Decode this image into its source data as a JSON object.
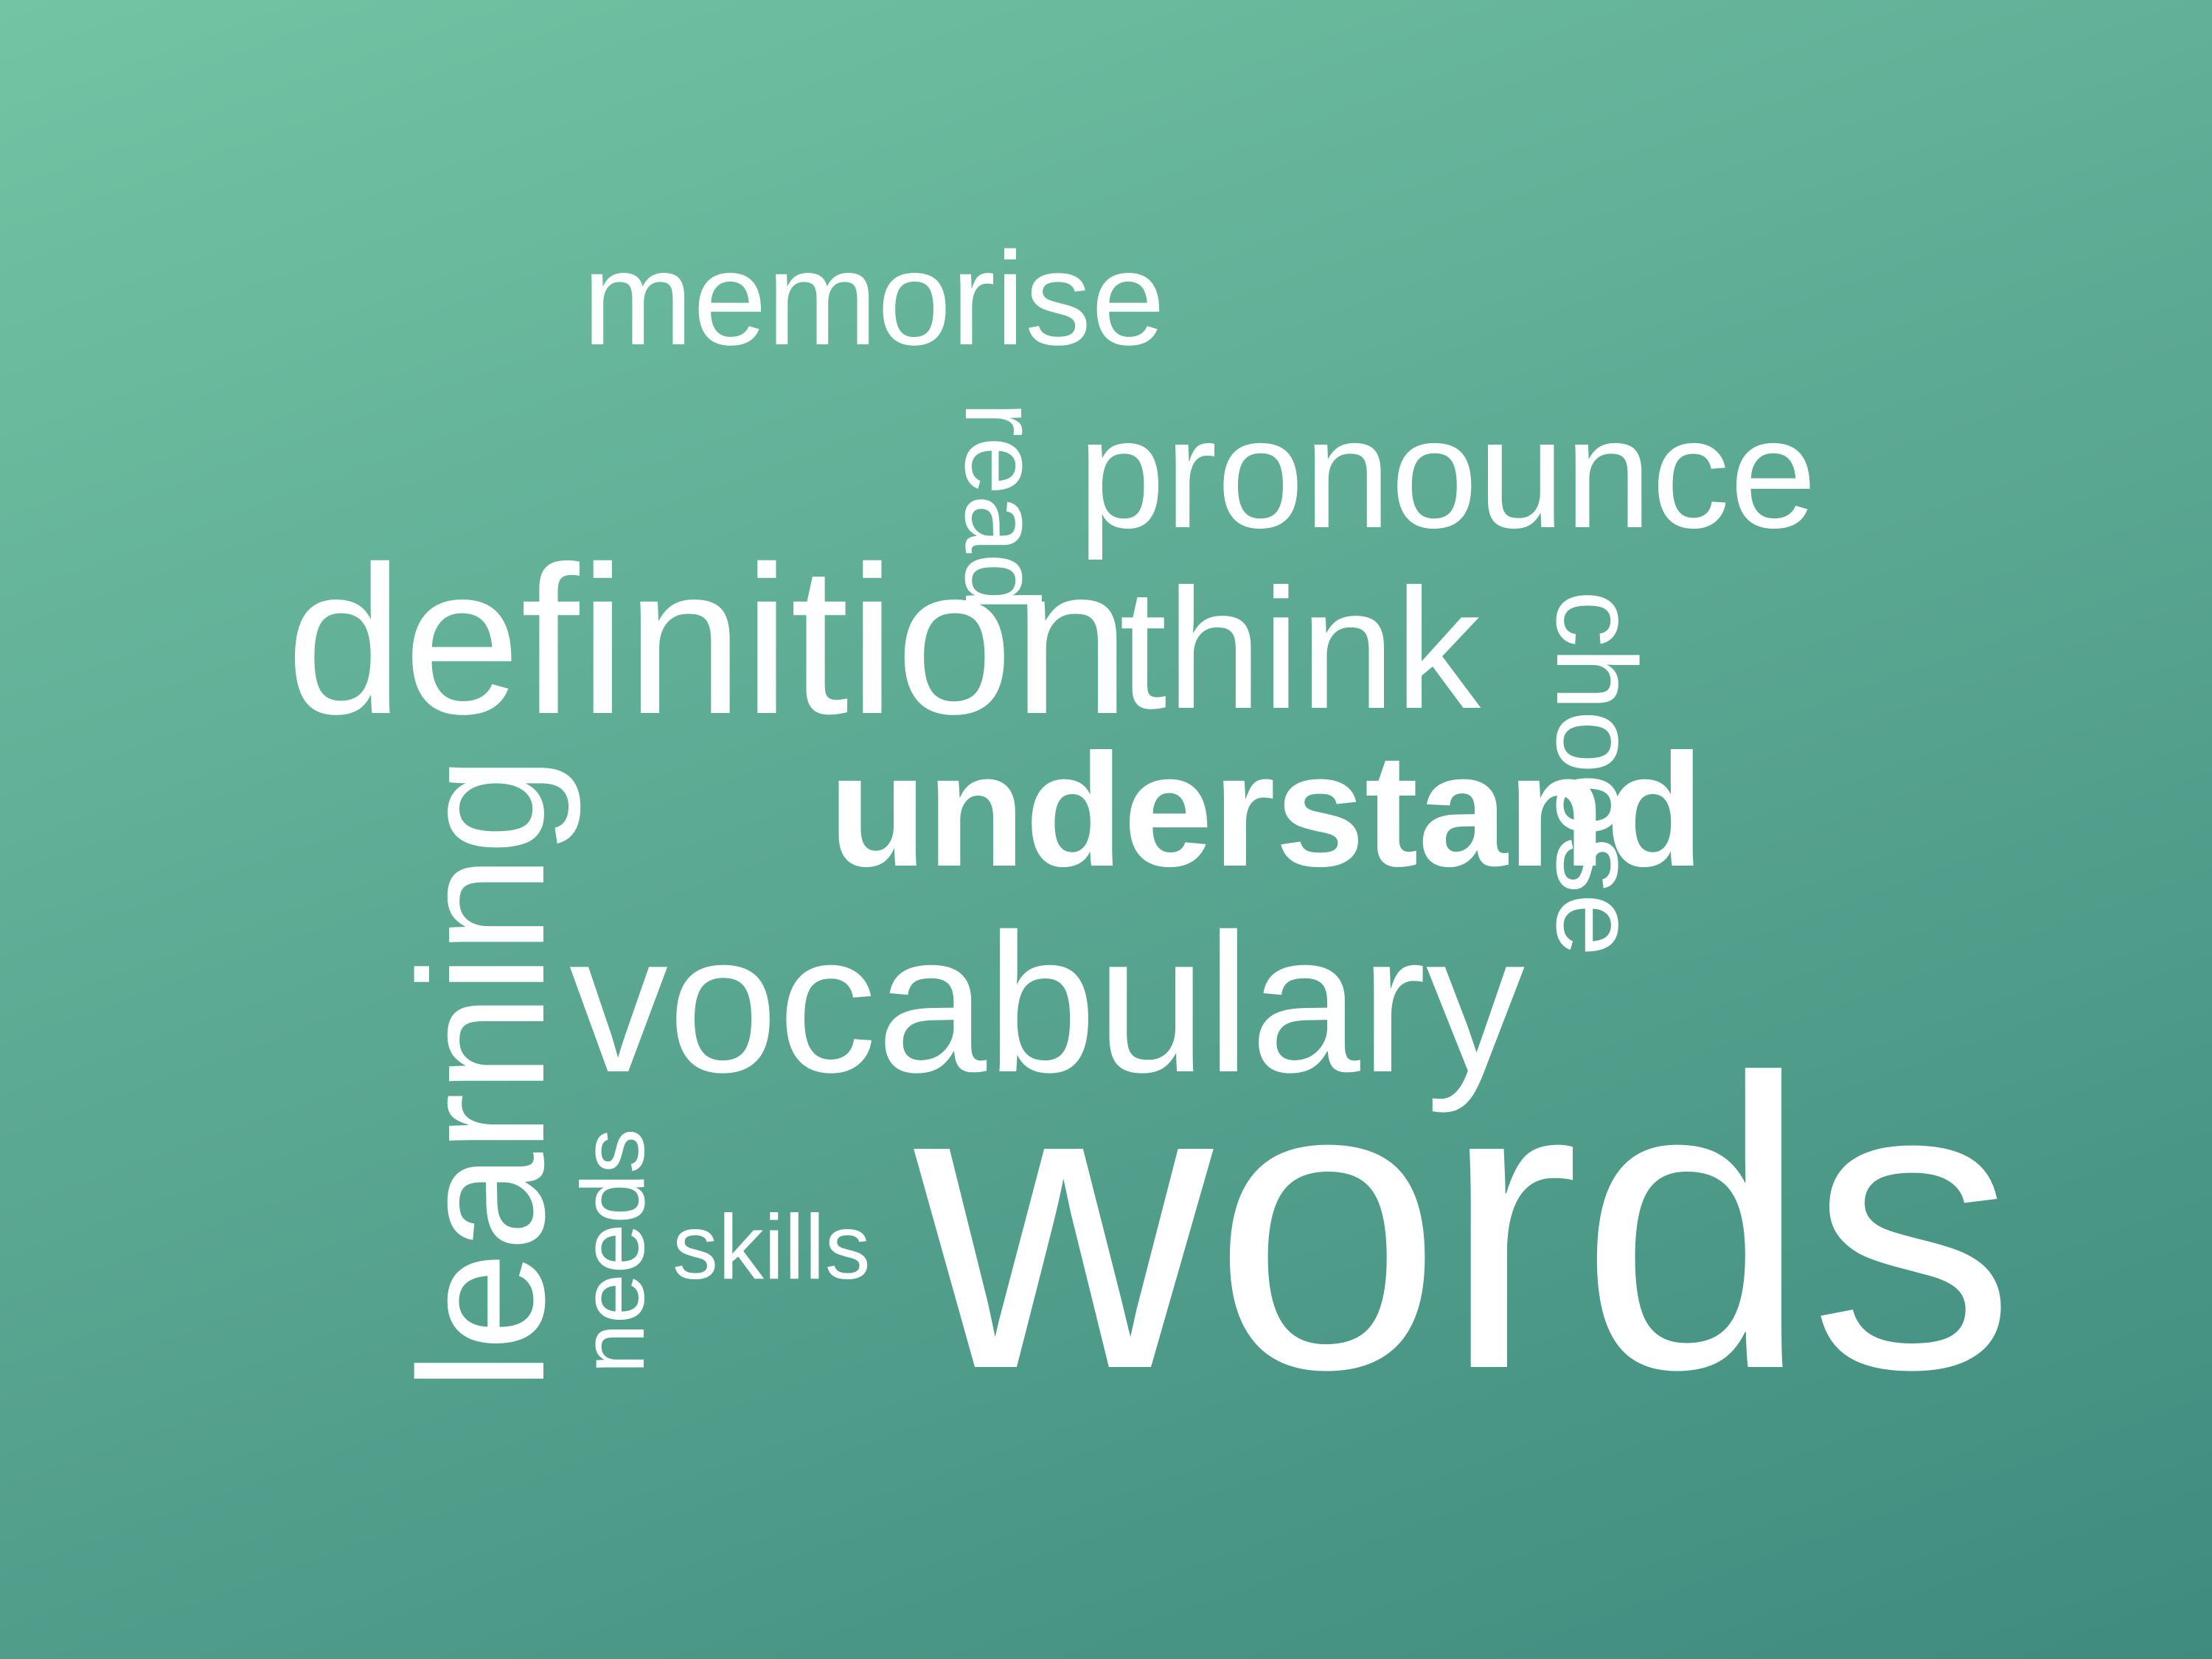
{
  "colors": {
    "text": "#ffffff",
    "background_light": "#72c4a4",
    "background_dark": "#3f8b7e"
  },
  "words": {
    "memorise": "memorise",
    "pronounce": "pronounce",
    "read": "read",
    "definition": "definition",
    "think": "think",
    "choose": "choose",
    "understand": "understand",
    "learning": "learning",
    "vocabulary": "vocabulary",
    "needs": "needs",
    "skills": "skills",
    "words": "words"
  }
}
